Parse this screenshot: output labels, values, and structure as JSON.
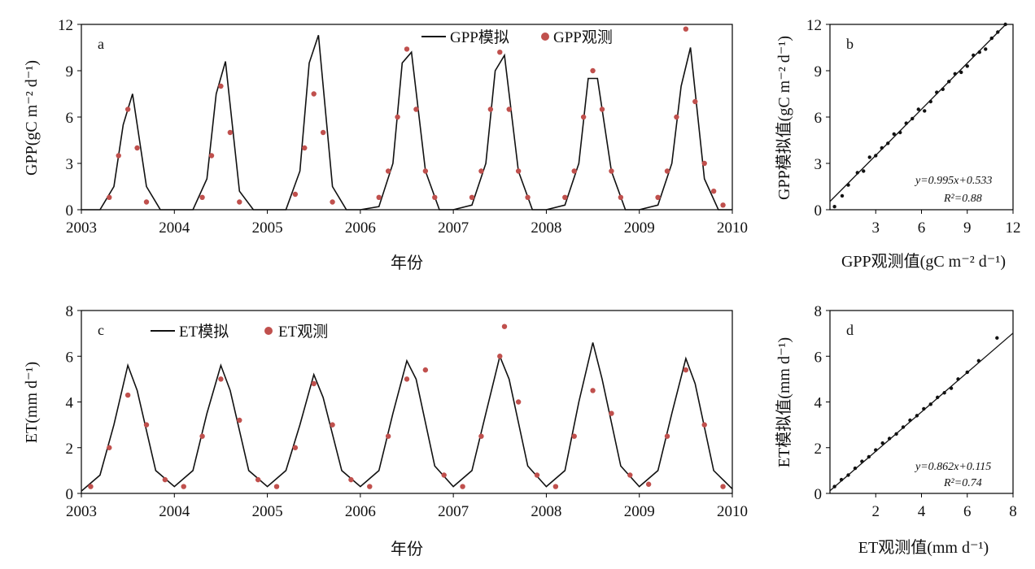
{
  "figure": {
    "colors": {
      "simulated": "#111111",
      "observed": "#c0504d",
      "scatter": "#111111",
      "axis": "#000000"
    }
  },
  "chart_data": [
    {
      "id": "a",
      "type": "line",
      "panel_label": "a",
      "xlabel": "年份",
      "ylabel": "GPP(gC m⁻² d⁻¹)",
      "xlim": [
        2003,
        2010
      ],
      "ylim": [
        0,
        12
      ],
      "xticks": [
        "2003",
        "2004",
        "2005",
        "2006",
        "2007",
        "2008",
        "2009",
        "2010"
      ],
      "yticks": [
        "0",
        "3",
        "6",
        "9",
        "12"
      ],
      "grid": false,
      "legend_position": "top-right",
      "legend": [
        "GPP模拟",
        "GPP观测"
      ],
      "series": [
        {
          "name": "GPP模拟",
          "style": "line",
          "x": [
            2003.0,
            2003.2,
            2003.35,
            2003.45,
            2003.55,
            2003.7,
            2003.85,
            2004.0,
            2004.2,
            2004.35,
            2004.45,
            2004.55,
            2004.7,
            2004.85,
            2005.0,
            2005.2,
            2005.35,
            2005.45,
            2005.55,
            2005.7,
            2005.85,
            2006.0,
            2006.2,
            2006.35,
            2006.45,
            2006.55,
            2006.7,
            2006.85,
            2007.0,
            2007.2,
            2007.35,
            2007.45,
            2007.55,
            2007.7,
            2007.85,
            2008.0,
            2008.2,
            2008.35,
            2008.45,
            2008.55,
            2008.7,
            2008.85,
            2009.0,
            2009.2,
            2009.35,
            2009.45,
            2009.55,
            2009.7,
            2009.85,
            2010.0
          ],
          "y": [
            0,
            0,
            1.5,
            5.5,
            7.5,
            1.5,
            0,
            0,
            0,
            2.0,
            7.5,
            9.6,
            1.2,
            0,
            0,
            0,
            2.5,
            9.5,
            11.3,
            1.5,
            0,
            0,
            0.2,
            3.0,
            9.5,
            10.2,
            2.5,
            0,
            0,
            0.3,
            3.0,
            9.0,
            10.0,
            2.5,
            0,
            0,
            0.3,
            3.0,
            8.5,
            8.5,
            2.5,
            0,
            0,
            0.3,
            3.0,
            8.0,
            10.5,
            2.0,
            0,
            0
          ]
        },
        {
          "name": "GPP观测",
          "style": "points",
          "x": [
            2003.3,
            2003.4,
            2003.5,
            2003.6,
            2003.7,
            2004.3,
            2004.4,
            2004.5,
            2004.6,
            2004.7,
            2005.3,
            2005.4,
            2005.5,
            2005.6,
            2005.7,
            2006.2,
            2006.3,
            2006.4,
            2006.5,
            2006.6,
            2006.7,
            2006.8,
            2007.2,
            2007.3,
            2007.4,
            2007.5,
            2007.6,
            2007.7,
            2007.8,
            2008.2,
            2008.3,
            2008.4,
            2008.5,
            2008.6,
            2008.7,
            2008.8,
            2009.2,
            2009.3,
            2009.4,
            2009.5,
            2009.6,
            2009.7,
            2009.8,
            2009.9
          ],
          "y": [
            0.8,
            3.5,
            6.5,
            4.0,
            0.5,
            0.8,
            3.5,
            8.0,
            5.0,
            0.5,
            1.0,
            4.0,
            7.5,
            5.0,
            0.5,
            0.8,
            2.5,
            6.0,
            10.4,
            6.5,
            2.5,
            0.8,
            0.8,
            2.5,
            6.5,
            10.2,
            6.5,
            2.5,
            0.8,
            0.8,
            2.5,
            6.0,
            9.0,
            6.5,
            2.5,
            0.8,
            0.8,
            2.5,
            6.0,
            11.7,
            7.0,
            3.0,
            1.2,
            0.3
          ]
        }
      ]
    },
    {
      "id": "b",
      "type": "scatter",
      "panel_label": "b",
      "xlabel": "GPP观测值(gC m⁻² d⁻¹)",
      "ylabel": "GPP模拟值(gC m⁻² d⁻¹)",
      "xlim": [
        0,
        12
      ],
      "ylim": [
        0,
        12
      ],
      "xticks": [
        "3",
        "6",
        "9",
        "12"
      ],
      "yticks": [
        "0",
        "3",
        "6",
        "9",
        "12"
      ],
      "grid": false,
      "regression": {
        "slope": 0.995,
        "intercept": 0.533,
        "r2": 0.88
      },
      "equation_text": "y=0.995x+0.533",
      "r2_text": "R²=0.88",
      "x": [
        0.3,
        0.8,
        1.2,
        1.8,
        2.2,
        2.6,
        3.0,
        3.4,
        3.8,
        4.2,
        4.6,
        5.0,
        5.4,
        5.8,
        6.2,
        6.6,
        7.0,
        7.4,
        7.8,
        8.2,
        8.6,
        9.0,
        9.4,
        9.8,
        10.2,
        10.6,
        11.0,
        11.5
      ],
      "y": [
        0.2,
        0.9,
        1.6,
        2.4,
        2.5,
        3.4,
        3.5,
        4.0,
        4.3,
        4.9,
        5.0,
        5.6,
        5.9,
        6.5,
        6.4,
        7.0,
        7.6,
        7.8,
        8.3,
        8.8,
        8.9,
        9.3,
        10.0,
        10.2,
        10.4,
        11.1,
        11.5,
        12.0
      ]
    },
    {
      "id": "c",
      "type": "line",
      "panel_label": "c",
      "xlabel": "年份",
      "ylabel": "ET(mm d⁻¹)",
      "xlim": [
        2003,
        2010
      ],
      "ylim": [
        0,
        8
      ],
      "xticks": [
        "2003",
        "2004",
        "2005",
        "2006",
        "2007",
        "2008",
        "2009",
        "2010"
      ],
      "yticks": [
        "0",
        "2",
        "4",
        "6",
        "8"
      ],
      "grid": false,
      "legend_position": "top-left",
      "legend": [
        "ET模拟",
        "ET观测"
      ],
      "series": [
        {
          "name": "ET模拟",
          "style": "line",
          "x": [
            2003.0,
            2003.2,
            2003.35,
            2003.5,
            2003.6,
            2003.8,
            2004.0,
            2004.2,
            2004.35,
            2004.5,
            2004.6,
            2004.8,
            2005.0,
            2005.2,
            2005.35,
            2005.5,
            2005.6,
            2005.8,
            2006.0,
            2006.2,
            2006.35,
            2006.5,
            2006.6,
            2006.8,
            2007.0,
            2007.2,
            2007.35,
            2007.5,
            2007.6,
            2007.8,
            2008.0,
            2008.2,
            2008.35,
            2008.5,
            2008.6,
            2008.8,
            2009.0,
            2009.2,
            2009.35,
            2009.5,
            2009.6,
            2009.8,
            2010.0
          ],
          "y": [
            0.1,
            0.8,
            3.0,
            5.6,
            4.5,
            1.0,
            0.3,
            1.0,
            3.5,
            5.6,
            4.5,
            1.0,
            0.3,
            1.0,
            3.0,
            5.2,
            4.2,
            1.0,
            0.3,
            1.0,
            3.5,
            5.8,
            5.0,
            1.2,
            0.3,
            1.0,
            3.5,
            6.0,
            5.0,
            1.2,
            0.3,
            1.0,
            4.0,
            6.6,
            5.0,
            1.2,
            0.3,
            1.0,
            3.5,
            5.9,
            4.8,
            1.0,
            0.2
          ]
        },
        {
          "name": "ET观测",
          "style": "points",
          "x": [
            2003.1,
            2003.3,
            2003.5,
            2003.7,
            2003.9,
            2004.1,
            2004.3,
            2004.5,
            2004.7,
            2004.9,
            2005.1,
            2005.3,
            2005.5,
            2005.7,
            2005.9,
            2006.1,
            2006.3,
            2006.5,
            2006.7,
            2006.9,
            2007.1,
            2007.3,
            2007.5,
            2007.55,
            2007.7,
            2007.9,
            2008.1,
            2008.3,
            2008.5,
            2008.7,
            2008.9,
            2009.1,
            2009.3,
            2009.5,
            2009.7,
            2009.9
          ],
          "y": [
            0.3,
            2.0,
            4.3,
            3.0,
            0.6,
            0.3,
            2.5,
            5.0,
            3.2,
            0.6,
            0.3,
            2.0,
            4.8,
            3.0,
            0.6,
            0.3,
            2.5,
            5.0,
            5.4,
            0.8,
            0.3,
            2.5,
            6.0,
            7.3,
            4.0,
            0.8,
            0.3,
            2.5,
            4.5,
            3.5,
            0.8,
            0.4,
            2.5,
            5.4,
            3.0,
            0.3
          ]
        }
      ]
    },
    {
      "id": "d",
      "type": "scatter",
      "panel_label": "d",
      "xlabel": "ET观测值(mm d⁻¹)",
      "ylabel": "ET模拟值(mm d⁻¹)",
      "xlim": [
        0,
        8
      ],
      "ylim": [
        0,
        8
      ],
      "xticks": [
        "2",
        "4",
        "6",
        "8"
      ],
      "yticks": [
        "0",
        "2",
        "4",
        "6",
        "8"
      ],
      "grid": false,
      "regression": {
        "slope": 0.862,
        "intercept": 0.115,
        "r2": 0.74
      },
      "equation_text": "y=0.862x+0.115",
      "r2_text": "R²=0.74",
      "x": [
        0.2,
        0.5,
        0.8,
        1.1,
        1.4,
        1.7,
        2.0,
        2.3,
        2.6,
        2.9,
        3.2,
        3.5,
        3.8,
        4.1,
        4.4,
        4.7,
        5.0,
        5.3,
        5.6,
        6.0,
        6.5,
        7.3
      ],
      "y": [
        0.3,
        0.6,
        0.8,
        1.1,
        1.4,
        1.6,
        1.9,
        2.2,
        2.4,
        2.6,
        2.9,
        3.2,
        3.4,
        3.7,
        3.9,
        4.2,
        4.4,
        4.6,
        5.0,
        5.3,
        5.8,
        6.8
      ]
    }
  ]
}
